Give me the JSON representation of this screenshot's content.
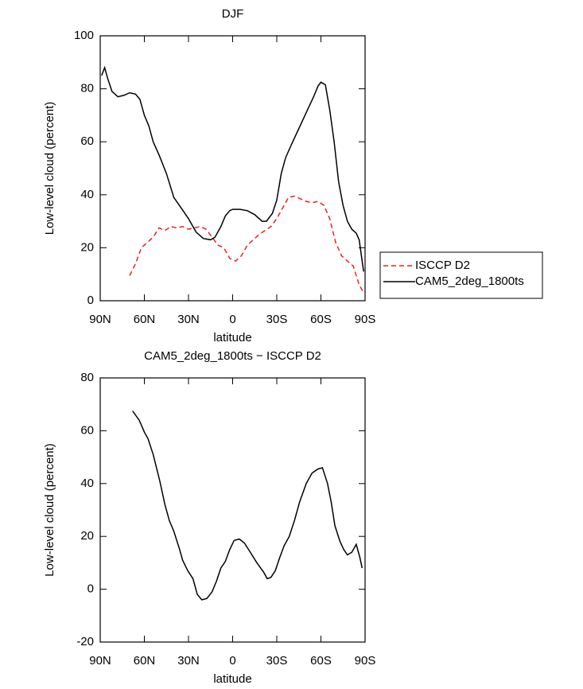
{
  "chart_data": [
    {
      "type": "line",
      "title": "DJF",
      "xlabel": "latitude",
      "ylabel": "Low-level cloud (percent)",
      "xlim": [
        90,
        -90
      ],
      "xticks": [
        {
          "value": 90,
          "label": "90N"
        },
        {
          "value": 60,
          "label": "60N"
        },
        {
          "value": 30,
          "label": "30N"
        },
        0,
        {
          "value": -30,
          "label": "30S"
        },
        {
          "value": -60,
          "label": "60S"
        },
        {
          "value": -90,
          "label": "90S"
        }
      ],
      "ylim": [
        0,
        100
      ],
      "yticks": [
        0,
        20,
        40,
        60,
        80,
        100
      ],
      "legend": "right",
      "series": [
        {
          "name": "ISCCP D2",
          "color": "#e8231f",
          "style": "dashed",
          "x": [
            70,
            66,
            62,
            58,
            54,
            50,
            46,
            42,
            38,
            34,
            30,
            26,
            22,
            18,
            14,
            10,
            6,
            2,
            -2,
            -6,
            -10,
            -14,
            -18,
            -22,
            -26,
            -30,
            -34,
            -38,
            -42,
            -46,
            -50,
            -54,
            -58,
            -62,
            -66,
            -70,
            -74,
            -78,
            -82,
            -86,
            -89
          ],
          "values": [
            9.5,
            14,
            20,
            22,
            24,
            27.5,
            26.5,
            28,
            27.5,
            28,
            27,
            27.5,
            28,
            27,
            24,
            21,
            20,
            16,
            15,
            17,
            21,
            23,
            25,
            26.5,
            28,
            31,
            35,
            39,
            39.5,
            38.5,
            37.5,
            37,
            37.5,
            36,
            31,
            22,
            17,
            15,
            13,
            6,
            3
          ]
        },
        {
          "name": "CAM5_2deg_1800ts",
          "color": "#000000",
          "style": "solid",
          "x": [
            89,
            87,
            85,
            82,
            78,
            74,
            70,
            66,
            63,
            60,
            57,
            54,
            50,
            45,
            40,
            35,
            30,
            25,
            20,
            15,
            12,
            8,
            5,
            2,
            0,
            -5,
            -10,
            -15,
            -20,
            -23,
            -27,
            -30,
            -33,
            -36,
            -40,
            -45,
            -50,
            -55,
            -58,
            -60,
            -63,
            -66,
            -69,
            -72,
            -75,
            -78,
            -81,
            -84,
            -86,
            -88,
            -89
          ],
          "values": [
            85,
            88,
            84,
            79,
            77,
            77.5,
            78.5,
            78,
            76,
            70,
            66,
            60,
            55,
            48,
            39,
            35,
            31,
            26,
            23.5,
            23,
            24,
            28,
            32,
            34,
            34.5,
            34.5,
            34,
            32.5,
            30,
            30,
            33,
            38,
            48,
            54,
            59,
            65,
            71,
            77,
            81,
            82.5,
            81.5,
            72,
            60,
            45,
            36,
            30,
            27,
            25.5,
            23,
            15,
            11
          ]
        }
      ]
    },
    {
      "type": "line",
      "title": "CAM5_2deg_1800ts − ISCCP D2",
      "xlabel": "latitude",
      "ylabel": "Low-level cloud (percent)",
      "xlim": [
        90,
        -90
      ],
      "xticks": [
        {
          "value": 90,
          "label": "90N"
        },
        {
          "value": 60,
          "label": "60N"
        },
        {
          "value": 30,
          "label": "30N"
        },
        0,
        {
          "value": -30,
          "label": "30S"
        },
        {
          "value": -60,
          "label": "60S"
        },
        {
          "value": -90,
          "label": "90S"
        }
      ],
      "ylim": [
        -20,
        80
      ],
      "yticks": [
        -20,
        0,
        20,
        40,
        60,
        80
      ],
      "series": [
        {
          "color": "#000000",
          "style": "solid",
          "x": [
            68,
            63.5,
            60,
            57.5,
            54,
            49.5,
            46,
            43,
            40,
            36,
            34,
            30.5,
            27,
            24,
            21,
            17.5,
            14,
            11,
            8,
            5,
            2,
            -1,
            -4.5,
            -8,
            -12,
            -16.5,
            -21,
            -23.5,
            -26,
            -29,
            -32,
            -35,
            -38.5,
            -42,
            -45.5,
            -50,
            -54,
            -58,
            -61,
            -64.5,
            -67,
            -69.5,
            -73,
            -75.5,
            -78,
            -81,
            -84,
            -86.5,
            -88
          ],
          "values": [
            67.5,
            64,
            59.5,
            57,
            51,
            41,
            32,
            26,
            22,
            15,
            11,
            7,
            4,
            -2,
            -4,
            -3.5,
            -1,
            3,
            8,
            10.5,
            15,
            18.5,
            19,
            17.5,
            14,
            10,
            6.5,
            4,
            4.5,
            7,
            12,
            16.5,
            20,
            26,
            33,
            40,
            44,
            45.5,
            46,
            40,
            33,
            24,
            18,
            15,
            13,
            14,
            17,
            12,
            8
          ]
        }
      ]
    }
  ]
}
